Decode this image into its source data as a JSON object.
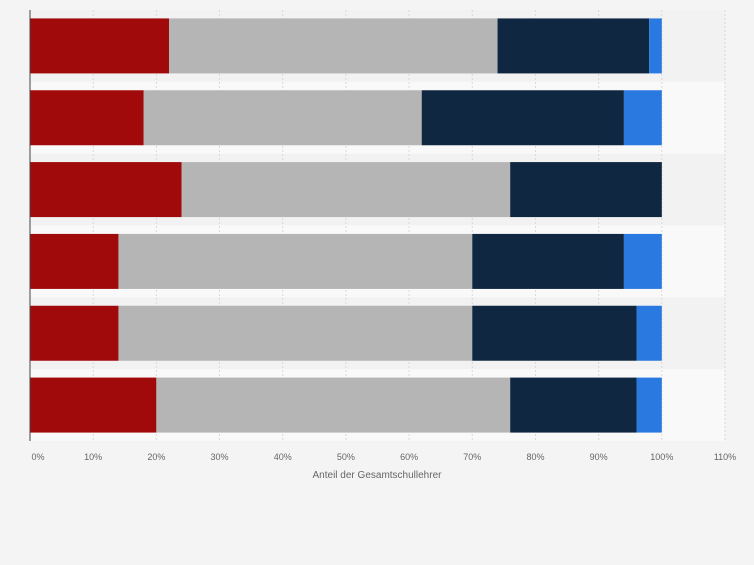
{
  "chart_data": {
    "type": "bar",
    "orientation": "horizontal",
    "stacked": true,
    "xlabel": "Anteil der Gesamtschullehrer",
    "ylabel": "",
    "xlim": [
      0,
      110
    ],
    "x_ticks": [
      0,
      10,
      20,
      30,
      40,
      50,
      60,
      70,
      80,
      90,
      100,
      110
    ],
    "x_tick_labels": [
      "0%",
      "10%",
      "20%",
      "30%",
      "40%",
      "50%",
      "60%",
      "70%",
      "80%",
      "90%",
      "100%",
      "110%"
    ],
    "grid": true,
    "legend": "none",
    "categories": [
      "",
      "",
      "",
      "",
      "",
      ""
    ],
    "series": [
      {
        "color": "#a10a0a",
        "values": [
          22,
          18,
          24,
          14,
          14,
          20
        ]
      },
      {
        "color": "#b5b5b5",
        "values": [
          52,
          44,
          52,
          56,
          56,
          56
        ]
      },
      {
        "color": "#0f2740",
        "values": [
          24,
          32,
          24,
          24,
          26,
          20
        ]
      },
      {
        "color": "#2a79e0",
        "values": [
          2,
          6,
          0,
          6,
          4,
          4
        ]
      }
    ]
  }
}
